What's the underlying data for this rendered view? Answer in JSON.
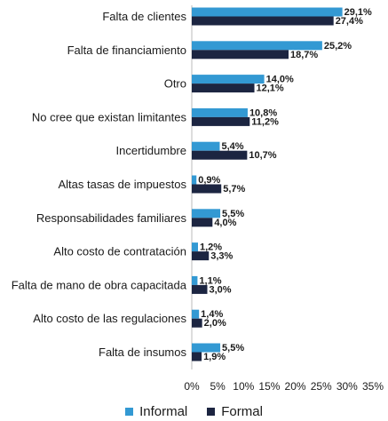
{
  "chart_data": {
    "type": "bar",
    "orientation": "horizontal",
    "categories": [
      "Falta de clientes",
      "Falta de financiamiento",
      "Otro",
      "No cree que existan limitantes",
      "Incertidumbre",
      "Altas tasas de impuestos",
      "Responsabilidades familiares",
      "Alto costo de contratación",
      "Falta de mano de obra capacitada",
      "Alto costo de las regulaciones",
      "Falta de insumos"
    ],
    "series": [
      {
        "name": "Informal",
        "color": "#3399d3",
        "values": [
          29.1,
          25.2,
          14.0,
          10.8,
          5.4,
          0.9,
          5.5,
          1.2,
          1.1,
          1.4,
          5.5
        ],
        "labels": [
          "29,1%",
          "25,2%",
          "14,0%",
          "10,8%",
          "5,4%",
          "0,9%",
          "5,5%",
          "1,2%",
          "1,1%",
          "1,4%",
          "5,5%"
        ]
      },
      {
        "name": "Formal",
        "color": "#1c2541",
        "values": [
          27.4,
          18.7,
          12.1,
          11.2,
          10.7,
          5.7,
          4.0,
          3.3,
          3.0,
          2.0,
          1.9
        ],
        "labels": [
          "27,4%",
          "18,7%",
          "12,1%",
          "11,2%",
          "10,7%",
          "5,7%",
          "4,0%",
          "3,3%",
          "3,0%",
          "2,0%",
          "1,9%"
        ]
      }
    ],
    "xlim": [
      0,
      35
    ],
    "xticks": [
      "0%",
      "5%",
      "10%",
      "15%",
      "20%",
      "25%",
      "30%",
      "35%"
    ],
    "grid": false,
    "legend_position": "bottom"
  }
}
